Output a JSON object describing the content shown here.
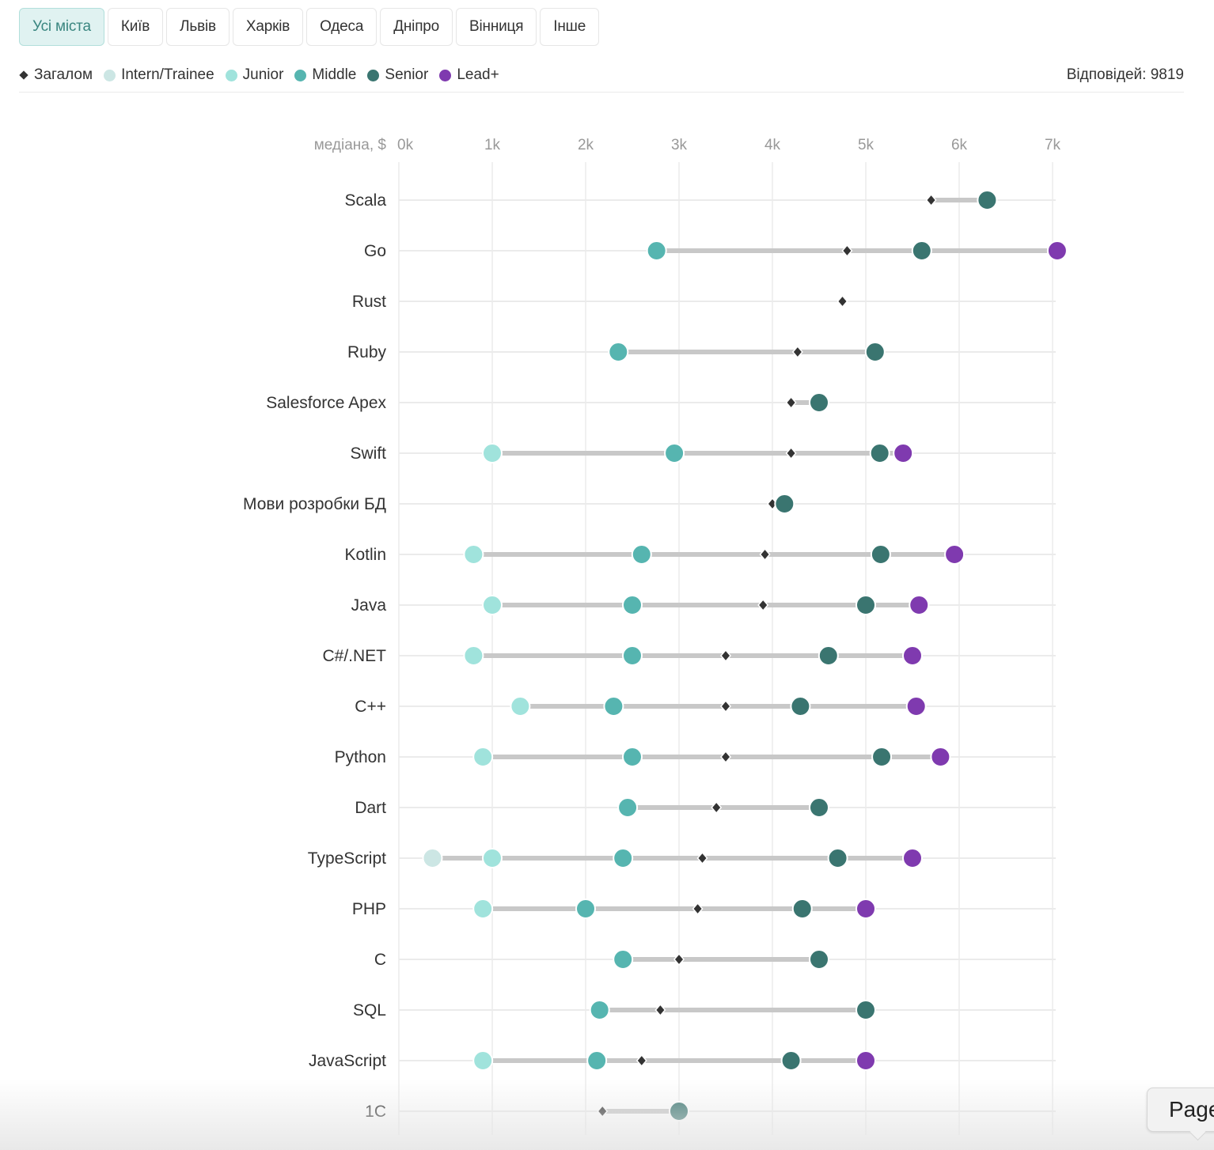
{
  "tabs": [
    {
      "label": "Усі міста",
      "active": true
    },
    {
      "label": "Київ",
      "active": false
    },
    {
      "label": "Львів",
      "active": false
    },
    {
      "label": "Харків",
      "active": false
    },
    {
      "label": "Одеса",
      "active": false
    },
    {
      "label": "Дніпро",
      "active": false
    },
    {
      "label": "Вінниця",
      "active": false
    },
    {
      "label": "Інше",
      "active": false
    }
  ],
  "legend": {
    "overall": "Загалом",
    "intern": "Intern/Trainee",
    "junior": "Junior",
    "middle": "Middle",
    "senior": "Senior",
    "lead": "Lead+"
  },
  "responses": "Відповідей: 9819",
  "page_button": "Page",
  "colors": {
    "overall": "#333333",
    "intern": "#cce6e4",
    "junior": "#a0e3dc",
    "middle": "#56b5b0",
    "senior": "#3a7570",
    "lead": "#7f3aaf",
    "range": "#c8c8c8",
    "grid": "#ebebeb"
  },
  "chart_data": {
    "type": "scatter",
    "subtype": "dot-range",
    "title": "",
    "xlabel": "медіана, $",
    "xlim": [
      0,
      7000
    ],
    "x_ticks": [
      0,
      1000,
      2000,
      3000,
      4000,
      5000,
      6000,
      7000
    ],
    "x_tick_labels": [
      "0k",
      "1k",
      "2k",
      "3k",
      "4k",
      "5k",
      "6k",
      "7k"
    ],
    "grid": true,
    "legend_position": "top-left",
    "series_order": [
      "intern",
      "junior",
      "middle",
      "senior",
      "lead"
    ],
    "categories": [
      "Scala",
      "Go",
      "Rust",
      "Ruby",
      "Salesforce Apex",
      "Swift",
      "Мови розробки БД",
      "Kotlin",
      "Java",
      "C#/.NET",
      "C++",
      "Python",
      "Dart",
      "TypeScript",
      "PHP",
      "C",
      "SQL",
      "JavaScript",
      "1C"
    ],
    "rows": [
      {
        "name": "Scala",
        "overall": 5700,
        "intern": null,
        "junior": null,
        "middle": null,
        "senior": 6300,
        "lead": null
      },
      {
        "name": "Go",
        "overall": 4800,
        "intern": null,
        "junior": null,
        "middle": 2760,
        "senior": 5600,
        "lead": 7050
      },
      {
        "name": "Rust",
        "overall": 4750,
        "intern": null,
        "junior": null,
        "middle": null,
        "senior": null,
        "lead": null
      },
      {
        "name": "Ruby",
        "overall": 4270,
        "intern": null,
        "junior": null,
        "middle": 2350,
        "senior": 5100,
        "lead": null
      },
      {
        "name": "Salesforce Apex",
        "overall": 4200,
        "intern": null,
        "junior": null,
        "middle": null,
        "senior": 4500,
        "lead": null
      },
      {
        "name": "Swift",
        "overall": 4200,
        "intern": null,
        "junior": 1000,
        "middle": 2950,
        "senior": 5150,
        "lead": 5400
      },
      {
        "name": "Мови розробки БД",
        "overall": 4000,
        "intern": null,
        "junior": null,
        "middle": null,
        "senior": 4130,
        "lead": null
      },
      {
        "name": "Kotlin",
        "overall": 3920,
        "intern": null,
        "junior": 800,
        "middle": 2600,
        "senior": 5160,
        "lead": 5950
      },
      {
        "name": "Java",
        "overall": 3900,
        "intern": null,
        "junior": 1000,
        "middle": 2500,
        "senior": 5000,
        "lead": 5570
      },
      {
        "name": "C#/.NET",
        "overall": 3500,
        "intern": null,
        "junior": 800,
        "middle": 2500,
        "senior": 4600,
        "lead": 5500
      },
      {
        "name": "C++",
        "overall": 3500,
        "intern": null,
        "junior": 1300,
        "middle": 2300,
        "senior": 4300,
        "lead": 5540
      },
      {
        "name": "Python",
        "overall": 3500,
        "intern": null,
        "junior": 900,
        "middle": 2500,
        "senior": 5170,
        "lead": 5800
      },
      {
        "name": "Dart",
        "overall": 3400,
        "intern": null,
        "junior": null,
        "middle": 2450,
        "senior": 4500,
        "lead": null
      },
      {
        "name": "TypeScript",
        "overall": 3250,
        "intern": 360,
        "junior": 1000,
        "middle": 2400,
        "senior": 4700,
        "lead": 5500
      },
      {
        "name": "PHP",
        "overall": 3200,
        "intern": null,
        "junior": 900,
        "middle": 2000,
        "senior": 4320,
        "lead": 5000
      },
      {
        "name": "C",
        "overall": 3000,
        "intern": null,
        "junior": null,
        "middle": 2400,
        "senior": 4500,
        "lead": null
      },
      {
        "name": "SQL",
        "overall": 2800,
        "intern": null,
        "junior": null,
        "middle": 2150,
        "senior": 5000,
        "lead": null
      },
      {
        "name": "JavaScript",
        "overall": 2600,
        "intern": null,
        "junior": 900,
        "middle": 2120,
        "senior": 4200,
        "lead": 5000
      },
      {
        "name": "1C",
        "overall": 2180,
        "intern": null,
        "junior": null,
        "middle": null,
        "senior": 3000,
        "lead": null
      }
    ]
  }
}
